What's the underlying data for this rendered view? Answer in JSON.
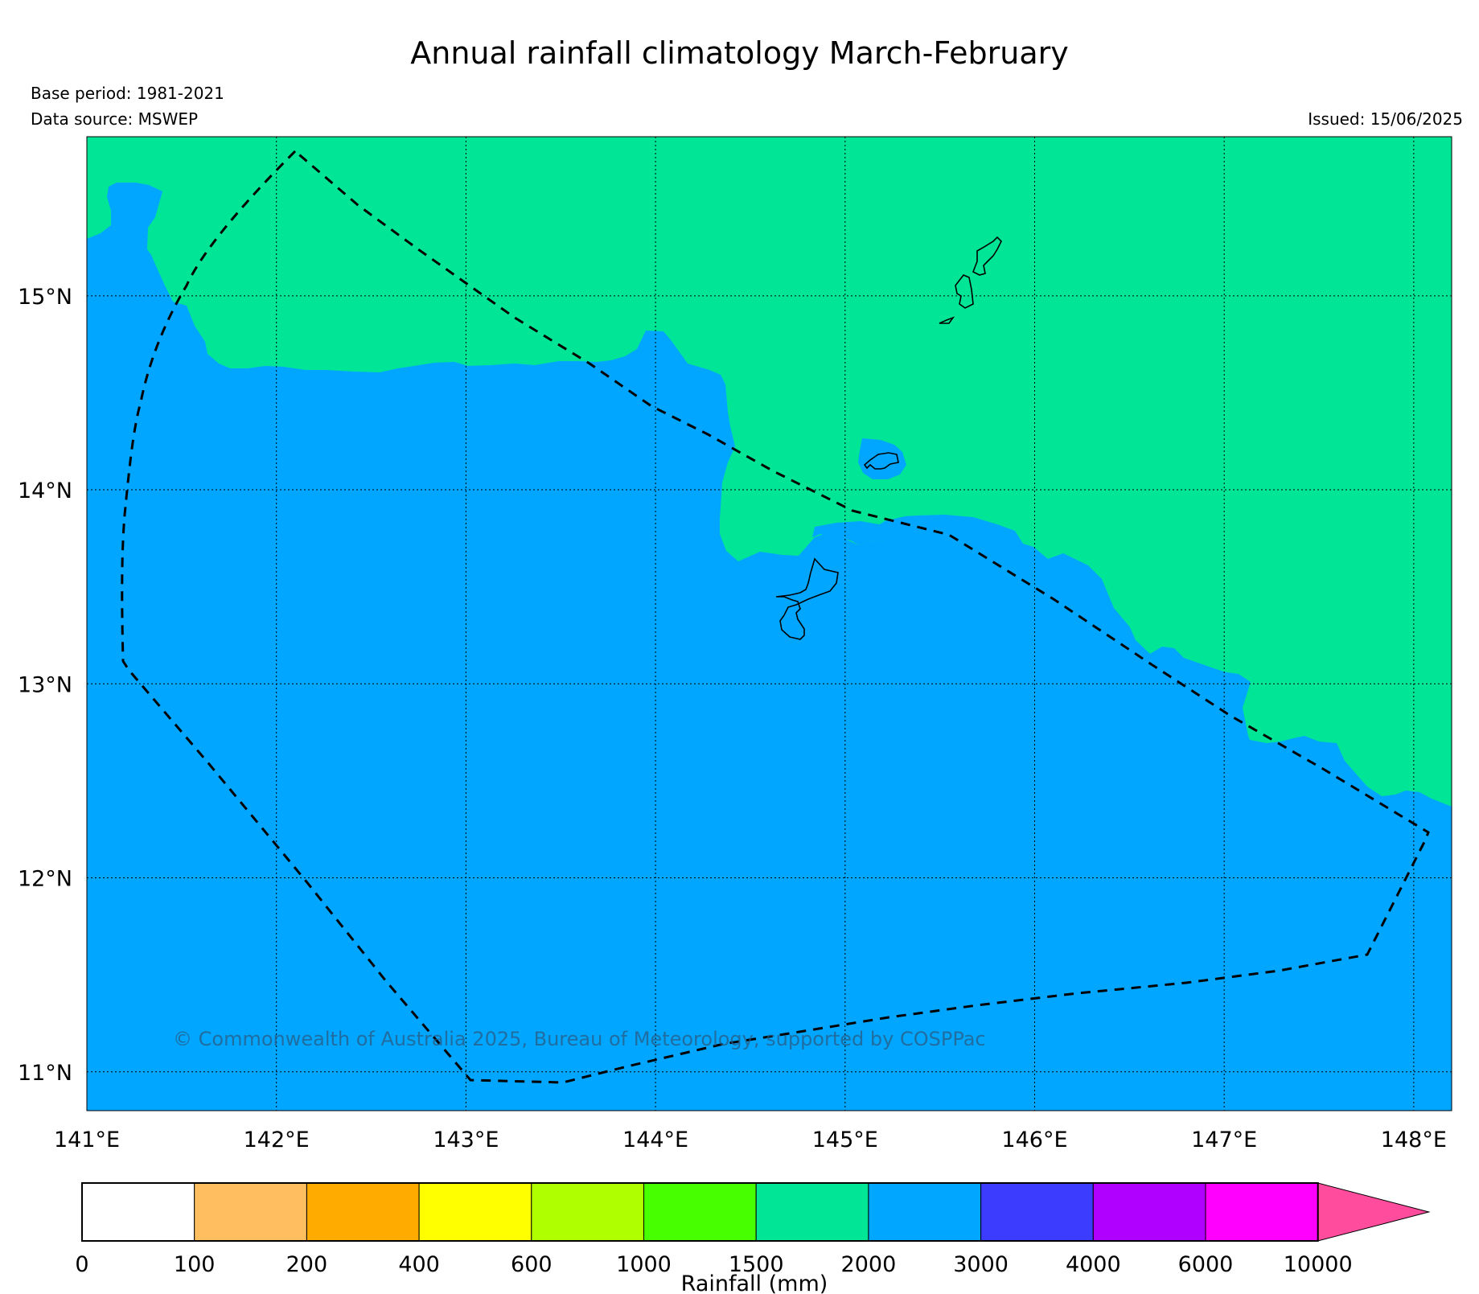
{
  "header": {
    "title": "Annual rainfall climatology March-February",
    "base_period": "Base period: 1981-2021",
    "data_source": "Data source: MSWEP",
    "issued": "Issued: 15/06/2025"
  },
  "map": {
    "lon_range": [
      141.0,
      148.2
    ],
    "lat_range": [
      10.8,
      15.82
    ],
    "x_ticks": [
      "141°E",
      "142°E",
      "143°E",
      "144°E",
      "145°E",
      "146°E",
      "147°E",
      "148°E"
    ],
    "y_ticks": [
      "15°N",
      "14°N",
      "13°N",
      "12°N",
      "11°N"
    ],
    "background_color": "#00a6ff",
    "region_color": "#00e696",
    "credit": "© Commonwealth of Australia 2025, Bureau of Meteorology, supported by COSPPac"
  },
  "colorbar": {
    "label": "Rainfall (mm)",
    "ticks": [
      "0",
      "100",
      "200",
      "400",
      "600",
      "1000",
      "1500",
      "2000",
      "3000",
      "4000",
      "6000",
      "10000"
    ],
    "colors": [
      "#ffffff",
      "#ffbf60",
      "#ffab00",
      "#ffff00",
      "#b0ff00",
      "#48ff00",
      "#00e696",
      "#00a6ff",
      "#3c3cff",
      "#b000ff",
      "#ff00ff"
    ],
    "extend_color": "#ff4c9c"
  }
}
